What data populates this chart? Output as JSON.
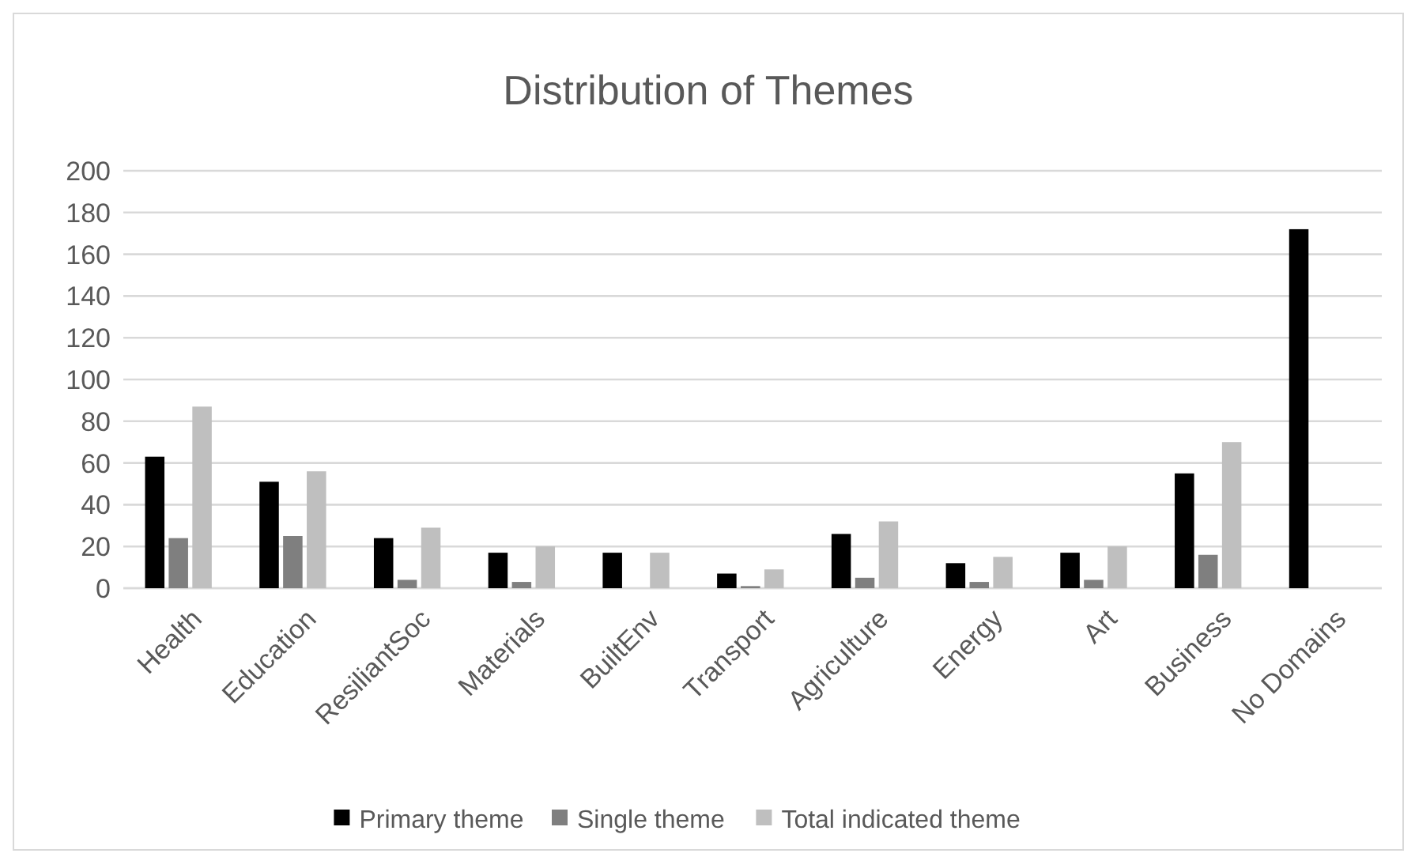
{
  "chart_data": {
    "type": "bar",
    "title": "Distribution of Themes",
    "categories": [
      "Health",
      "Education",
      "ResiliantSoc",
      "Materials",
      "BuiltEnv",
      "Transport",
      "Agriculture",
      "Energy",
      "Art",
      "Business",
      "No Domains"
    ],
    "series": [
      {
        "name": "Primary theme",
        "color": "#000000",
        "values": [
          63,
          51,
          24,
          17,
          17,
          7,
          26,
          12,
          17,
          55,
          172
        ]
      },
      {
        "name": "Single theme",
        "color": "#7f7f7f",
        "values": [
          24,
          25,
          4,
          3,
          0,
          1,
          5,
          3,
          4,
          16,
          0
        ]
      },
      {
        "name": "Total indicated theme",
        "color": "#bfbfbf",
        "values": [
          87,
          56,
          29,
          20,
          17,
          9,
          32,
          15,
          20,
          70,
          0
        ]
      }
    ],
    "ylim": [
      0,
      200
    ],
    "yticks": [
      0,
      20,
      40,
      60,
      80,
      100,
      120,
      140,
      160,
      180,
      200
    ],
    "grid": "y",
    "legend": "bottom"
  }
}
